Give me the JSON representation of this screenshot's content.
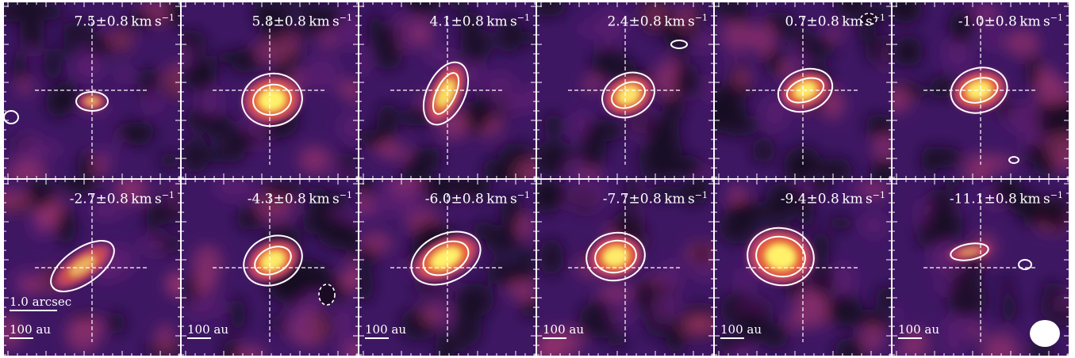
{
  "figure": {
    "panels": [
      {
        "velocity": "7.5",
        "uncertainty": "0.8",
        "unit": "km",
        "unit_s": "s",
        "unit_exp": "−1"
      },
      {
        "velocity": "5.8",
        "uncertainty": "0.8",
        "unit": "km",
        "unit_s": "s",
        "unit_exp": "−1"
      },
      {
        "velocity": "4.1",
        "uncertainty": "0.8",
        "unit": "km",
        "unit_s": "s",
        "unit_exp": "−1"
      },
      {
        "velocity": "2.4",
        "uncertainty": "0.8",
        "unit": "km",
        "unit_s": "s",
        "unit_exp": "−1"
      },
      {
        "velocity": "0.7",
        "uncertainty": "0.8",
        "unit": "km",
        "unit_s": "s",
        "unit_exp": "−1"
      },
      {
        "velocity": "-1.0",
        "uncertainty": "0.8",
        "unit": "km",
        "unit_s": "s",
        "unit_exp": "−1"
      },
      {
        "velocity": "-2.7",
        "uncertainty": "0.8",
        "unit": "km",
        "unit_s": "s",
        "unit_exp": "−1"
      },
      {
        "velocity": "-4.3",
        "uncertainty": "0.8",
        "unit": "km",
        "unit_s": "s",
        "unit_exp": "−1"
      },
      {
        "velocity": "-6.0",
        "uncertainty": "0.8",
        "unit": "km",
        "unit_s": "s",
        "unit_exp": "−1"
      },
      {
        "velocity": "-7.7",
        "uncertainty": "0.8",
        "unit": "km",
        "unit_s": "s",
        "unit_exp": "−1"
      },
      {
        "velocity": "-9.4",
        "uncertainty": "0.8",
        "unit": "km",
        "unit_s": "s",
        "unit_exp": "−1"
      },
      {
        "velocity": "-11.1",
        "uncertainty": "0.8",
        "unit": "km",
        "unit_s": "s",
        "unit_exp": "−1"
      }
    ],
    "angular_scale_label": "1.0 arcsec",
    "physical_scale_label": "100 au",
    "colors": {
      "background_dark": "#1a0a24",
      "background_mid": "#3e1763",
      "emission_low": "#b13a6f",
      "emission_mid": "#e8603a",
      "emission_peak": "#fff26b",
      "contour": "#ffffff"
    }
  }
}
